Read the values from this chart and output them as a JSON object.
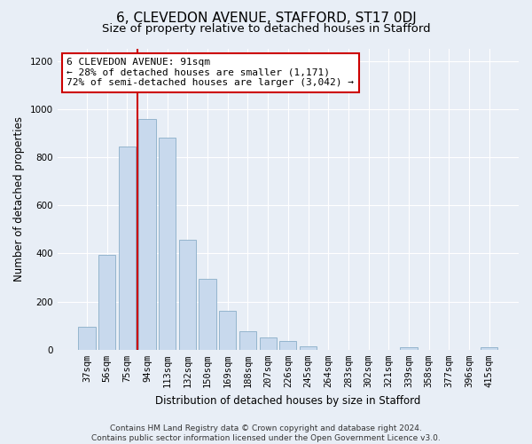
{
  "title": "6, CLEVEDON AVENUE, STAFFORD, ST17 0DJ",
  "subtitle": "Size of property relative to detached houses in Stafford",
  "xlabel": "Distribution of detached houses by size in Stafford",
  "ylabel": "Number of detached properties",
  "categories": [
    "37sqm",
    "56sqm",
    "75sqm",
    "94sqm",
    "113sqm",
    "132sqm",
    "150sqm",
    "169sqm",
    "188sqm",
    "207sqm",
    "226sqm",
    "245sqm",
    "264sqm",
    "283sqm",
    "302sqm",
    "321sqm",
    "339sqm",
    "358sqm",
    "377sqm",
    "396sqm",
    "415sqm"
  ],
  "values": [
    95,
    395,
    845,
    960,
    880,
    455,
    295,
    160,
    75,
    52,
    35,
    15,
    0,
    0,
    0,
    0,
    10,
    0,
    0,
    0,
    10
  ],
  "bar_color": "#c8d9ed",
  "bar_edge_color": "#8aaec8",
  "vline_index": 3,
  "vline_color": "#cc0000",
  "annotation_text": "6 CLEVEDON AVENUE: 91sqm\n← 28% of detached houses are smaller (1,171)\n72% of semi-detached houses are larger (3,042) →",
  "annotation_box_facecolor": "#ffffff",
  "annotation_box_edgecolor": "#cc0000",
  "footer_line1": "Contains HM Land Registry data © Crown copyright and database right 2024.",
  "footer_line2": "Contains public sector information licensed under the Open Government Licence v3.0.",
  "ylim": [
    0,
    1250
  ],
  "yticks": [
    0,
    200,
    400,
    600,
    800,
    1000,
    1200
  ],
  "bg_color": "#e8eef6",
  "plot_bg_color": "#e8eef6",
  "title_fontsize": 11,
  "subtitle_fontsize": 9.5,
  "axis_label_fontsize": 8.5,
  "tick_fontsize": 7.5,
  "footer_fontsize": 6.5,
  "annotation_fontsize": 8,
  "ylabel_fontsize": 8.5
}
